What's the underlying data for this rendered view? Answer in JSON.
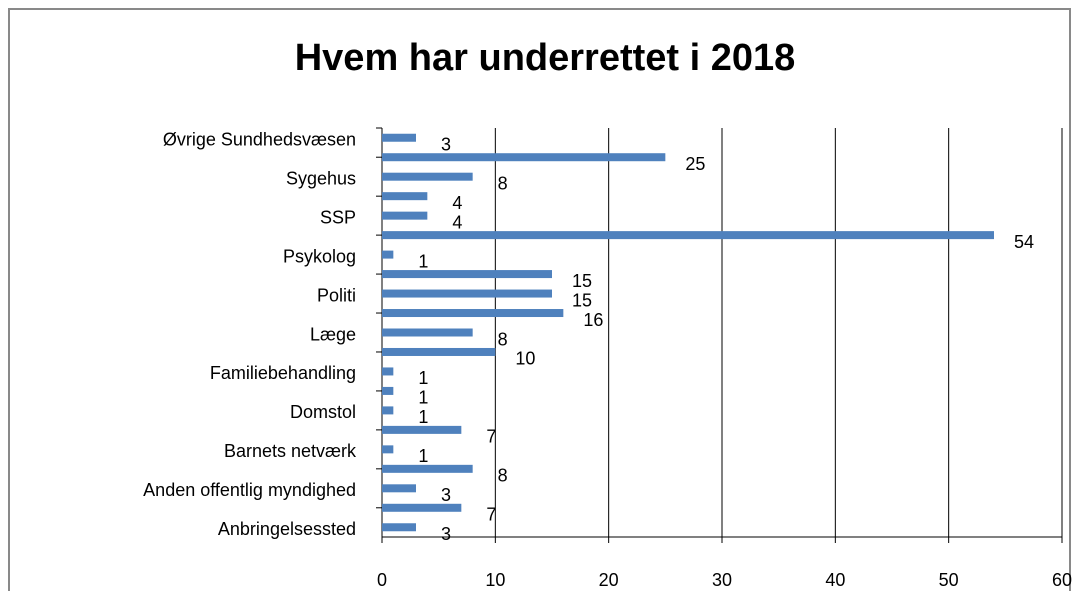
{
  "chart_data": {
    "type": "bar",
    "orientation": "horizontal",
    "title": "Hvem har underrettet i 2018",
    "categories": [
      "Øvrige Sundhedsvæsen",
      null,
      "Sygehus",
      null,
      "SSP",
      null,
      "Psykolog",
      null,
      "Politi",
      null,
      "Læge",
      null,
      "Familiebehandling",
      null,
      "Domstol",
      null,
      "Barnets netværk",
      null,
      "Anden offentlig myndighed",
      null,
      "Anbringelsessted"
    ],
    "values": [
      3,
      25,
      8,
      4,
      4,
      54,
      1,
      15,
      15,
      16,
      8,
      10,
      1,
      1,
      1,
      7,
      1,
      8,
      3,
      7,
      3
    ],
    "color": "#4f81bd",
    "xlim": [
      0,
      60
    ],
    "xticks": [
      0,
      10,
      20,
      30,
      40,
      50,
      60
    ],
    "grid": true
  }
}
